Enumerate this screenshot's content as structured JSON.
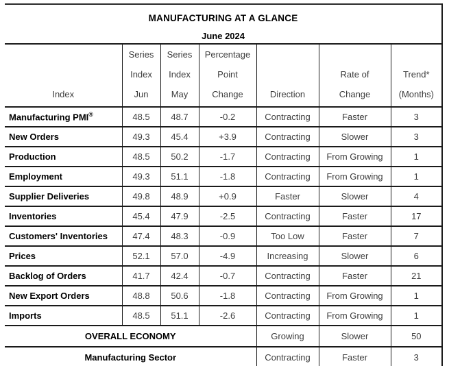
{
  "title": "MANUFACTURING AT A GLANCE",
  "subtitle": "June 2024",
  "header": {
    "index": {
      "l3": "Index"
    },
    "jun": {
      "l1": "Series",
      "l2": "Index",
      "l3": "Jun"
    },
    "may": {
      "l1": "Series",
      "l2": "Index",
      "l3": "May"
    },
    "change": {
      "l1": "Percentage",
      "l2": "Point",
      "l3": "Change"
    },
    "direction": {
      "l3": "Direction"
    },
    "rate": {
      "l2": "Rate of",
      "l3": "Change"
    },
    "trend": {
      "l2": "Trend*",
      "l3": "(Months)"
    }
  },
  "rows": [
    {
      "label": "Manufacturing PMI",
      "label_sup": "®",
      "jun": "48.5",
      "may": "48.7",
      "change": "-0.2",
      "direction": "Contracting",
      "rate": "Faster",
      "trend": "3"
    },
    {
      "label": "New Orders",
      "jun": "49.3",
      "may": "45.4",
      "change": "+3.9",
      "direction": "Contracting",
      "rate": "Slower",
      "trend": "3"
    },
    {
      "label": "Production",
      "jun": "48.5",
      "may": "50.2",
      "change": "-1.7",
      "direction": "Contracting",
      "rate": "From Growing",
      "trend": "1"
    },
    {
      "label": "Employment",
      "jun": "49.3",
      "may": "51.1",
      "change": "-1.8",
      "direction": "Contracting",
      "rate": "From Growing",
      "trend": "1"
    },
    {
      "label": "Supplier Deliveries",
      "jun": "49.8",
      "may": "48.9",
      "change": "+0.9",
      "direction": "Faster",
      "rate": "Slower",
      "trend": "4"
    },
    {
      "label": "Inventories",
      "jun": "45.4",
      "may": "47.9",
      "change": "-2.5",
      "direction": "Contracting",
      "rate": "Faster",
      "trend": "17"
    },
    {
      "label": "Customers' Inventories",
      "jun": "47.4",
      "may": "48.3",
      "change": "-0.9",
      "direction": "Too Low",
      "rate": "Faster",
      "trend": "7"
    },
    {
      "label": "Prices",
      "jun": "52.1",
      "may": "57.0",
      "change": "-4.9",
      "direction": "Increasing",
      "rate": "Slower",
      "trend": "6"
    },
    {
      "label": "Backlog of Orders",
      "jun": "41.7",
      "may": "42.4",
      "change": "-0.7",
      "direction": "Contracting",
      "rate": "Faster",
      "trend": "21"
    },
    {
      "label": "New Export Orders",
      "jun": "48.8",
      "may": "50.6",
      "change": "-1.8",
      "direction": "Contracting",
      "rate": "From Growing",
      "trend": "1"
    },
    {
      "label": "Imports",
      "jun": "48.5",
      "may": "51.1",
      "change": "-2.6",
      "direction": "Contracting",
      "rate": "From Growing",
      "trend": "1"
    }
  ],
  "summary": [
    {
      "label": "OVERALL ECONOMY",
      "direction": "Growing",
      "rate": "Slower",
      "trend": "50"
    },
    {
      "label": "Manufacturing Sector",
      "direction": "Contracting",
      "rate": "Faster",
      "trend": "3"
    }
  ]
}
